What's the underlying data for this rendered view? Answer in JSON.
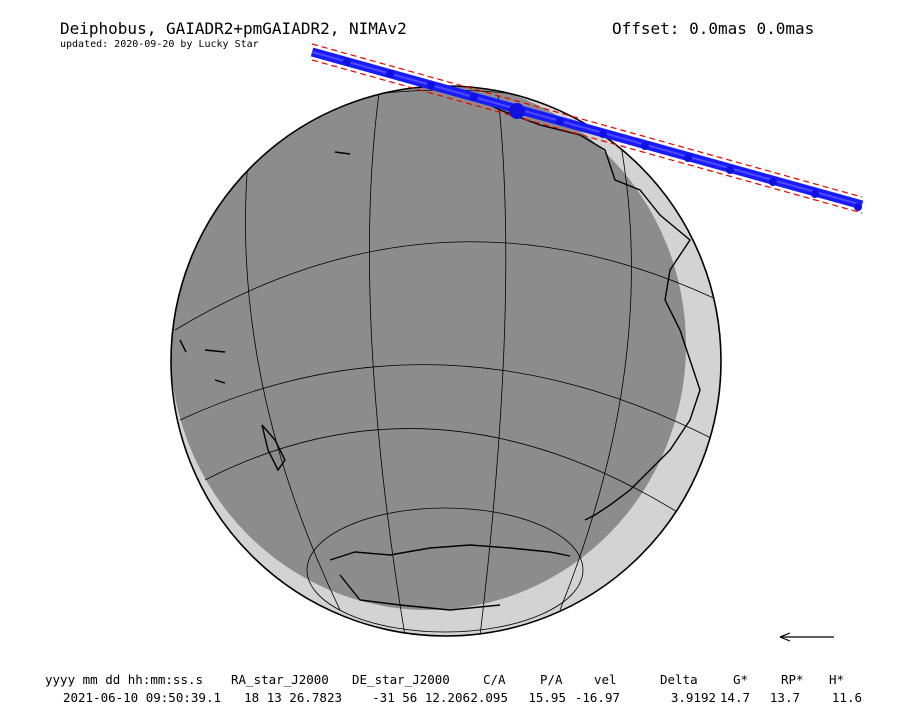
{
  "header": {
    "title": "Deiphobus, GAIADR2+pmGAIADR2, NIMAv2",
    "subtitle": "updated: 2020-09-20 by Lucky Star",
    "offset": "Offset: 0.0mas 0.0mas"
  },
  "table": {
    "columns": [
      "yyyy mm dd hh:mm:ss.s",
      "RA_star_J2000",
      "DE_star_J2000",
      "C/A",
      "P/A",
      "vel",
      "Delta",
      "G*",
      "RP*",
      "H*"
    ],
    "rows": [
      [
        "2021-06-10 09:50:39.1",
        "18 13 26.7823",
        "-31 56 12.206",
        2.095,
        15.95,
        -16.97,
        3.9192,
        14.7,
        13.7,
        11.6
      ]
    ]
  }
}
